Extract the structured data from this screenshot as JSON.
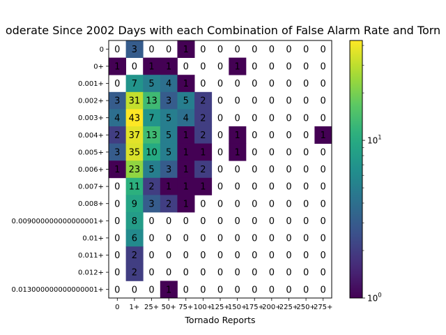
{
  "chart_data": {
    "type": "heatmap",
    "title": "oderate Since 2002 Days with each Combination of False Alarm Rate and Torn",
    "xlabel": "Tornado Reports",
    "ylabel": "",
    "x_categories": [
      "0",
      "1+",
      "25+",
      "50+",
      "75+",
      "100+",
      "125+",
      "150+",
      "175+",
      "200+",
      "225+",
      "250+",
      "275+"
    ],
    "y_categories": [
      "0",
      "0+",
      "0.001+",
      "0.002+",
      "0.003+",
      "0.004+",
      "0.005+",
      "0.006+",
      "0.007+",
      "0.008+",
      "0.009000000000000001+",
      "0.01+",
      "0.011+",
      "0.012+",
      "0.013000000000000001+"
    ],
    "values": [
      [
        0,
        3,
        0,
        0,
        1,
        0,
        0,
        0,
        0,
        0,
        0,
        0,
        0
      ],
      [
        1,
        0,
        1,
        1,
        0,
        0,
        0,
        1,
        0,
        0,
        0,
        0,
        0
      ],
      [
        0,
        7,
        5,
        4,
        1,
        0,
        0,
        0,
        0,
        0,
        0,
        0,
        0
      ],
      [
        3,
        31,
        13,
        3,
        5,
        2,
        0,
        0,
        0,
        0,
        0,
        0,
        0
      ],
      [
        4,
        43,
        7,
        5,
        4,
        2,
        0,
        0,
        0,
        0,
        0,
        0,
        0
      ],
      [
        2,
        37,
        13,
        5,
        1,
        2,
        0,
        1,
        0,
        0,
        0,
        0,
        1
      ],
      [
        3,
        35,
        10,
        5,
        1,
        1,
        0,
        1,
        0,
        0,
        0,
        0,
        0
      ],
      [
        1,
        23,
        5,
        3,
        1,
        2,
        0,
        0,
        0,
        0,
        0,
        0,
        0
      ],
      [
        0,
        11,
        2,
        1,
        1,
        1,
        0,
        0,
        0,
        0,
        0,
        0,
        0
      ],
      [
        0,
        9,
        3,
        2,
        1,
        0,
        0,
        0,
        0,
        0,
        0,
        0,
        0
      ],
      [
        0,
        8,
        0,
        0,
        0,
        0,
        0,
        0,
        0,
        0,
        0,
        0,
        0
      ],
      [
        0,
        6,
        0,
        0,
        0,
        0,
        0,
        0,
        0,
        0,
        0,
        0,
        0
      ],
      [
        0,
        2,
        0,
        0,
        0,
        0,
        0,
        0,
        0,
        0,
        0,
        0,
        0
      ],
      [
        0,
        2,
        0,
        0,
        0,
        0,
        0,
        0,
        0,
        0,
        0,
        0,
        0
      ],
      [
        0,
        0,
        0,
        1,
        0,
        0,
        0,
        0,
        0,
        0,
        0,
        0,
        0
      ]
    ],
    "colormap": "viridis",
    "color_scale": "log",
    "color_range": [
      1,
      43
    ],
    "zero_cells": "blank",
    "colorbar": {
      "position": "right",
      "ticks": [
        {
          "base": "10",
          "exp": "0"
        },
        {
          "base": "10",
          "exp": "1"
        }
      ]
    },
    "grid": false
  }
}
